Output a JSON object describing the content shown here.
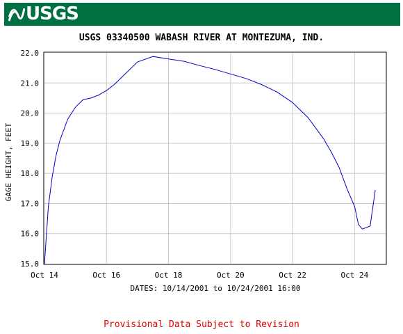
{
  "header": {
    "logo_text": "USGS",
    "color": "#006f41"
  },
  "chart_data": {
    "type": "line",
    "title": "USGS 03340500 WABASH RIVER AT MONTEZUMA, IND.",
    "xlabel": "DATES: 10/14/2001 to 10/24/2001 16:00",
    "ylabel": "GAGE HEIGHT, FEET",
    "xlim": [
      "2001-10-14",
      "2001-10-25"
    ],
    "ylim": [
      15.0,
      22.0
    ],
    "x_ticks": [
      "Oct 14",
      "Oct 16",
      "Oct 18",
      "Oct 20",
      "Oct 22",
      "Oct 24"
    ],
    "y_ticks": [
      "15.0",
      "16.0",
      "17.0",
      "18.0",
      "19.0",
      "20.0",
      "21.0",
      "22.0"
    ],
    "grid": true,
    "line_color": "#0000cc",
    "series": [
      {
        "x": [
          "2001-10-14 00:00",
          "2001-10-14 03:00",
          "2001-10-14 06:00",
          "2001-10-14 09:00",
          "2001-10-14 12:00",
          "2001-10-14 18:00",
          "2001-10-15 00:00",
          "2001-10-15 06:00",
          "2001-10-15 12:00",
          "2001-10-15 18:00",
          "2001-10-16 00:00",
          "2001-10-16 06:00",
          "2001-10-16 12:00",
          "2001-10-17 00:00",
          "2001-10-17 12:00",
          "2001-10-18 00:00",
          "2001-10-18 12:00",
          "2001-10-19 00:00",
          "2001-10-19 12:00",
          "2001-10-20 00:00",
          "2001-10-20 12:00",
          "2001-10-21 00:00",
          "2001-10-21 12:00",
          "2001-10-22 00:00",
          "2001-10-22 12:00",
          "2001-10-23 00:00",
          "2001-10-23 06:00",
          "2001-10-23 12:00",
          "2001-10-23 18:00",
          "2001-10-24 00:00",
          "2001-10-24 03:00",
          "2001-10-24 06:00",
          "2001-10-24 12:00",
          "2001-10-24 16:00"
        ],
        "y": [
          15.0,
          16.9,
          17.9,
          18.6,
          19.1,
          19.8,
          20.2,
          20.45,
          20.5,
          20.6,
          20.75,
          20.95,
          21.2,
          21.7,
          21.88,
          21.8,
          21.72,
          21.58,
          21.45,
          21.3,
          21.15,
          20.95,
          20.7,
          20.35,
          19.85,
          19.15,
          18.7,
          18.2,
          17.5,
          16.9,
          16.3,
          16.15,
          16.25,
          17.45
        ]
      }
    ]
  },
  "footer": {
    "text": "Provisional Data Subject to Revision"
  }
}
